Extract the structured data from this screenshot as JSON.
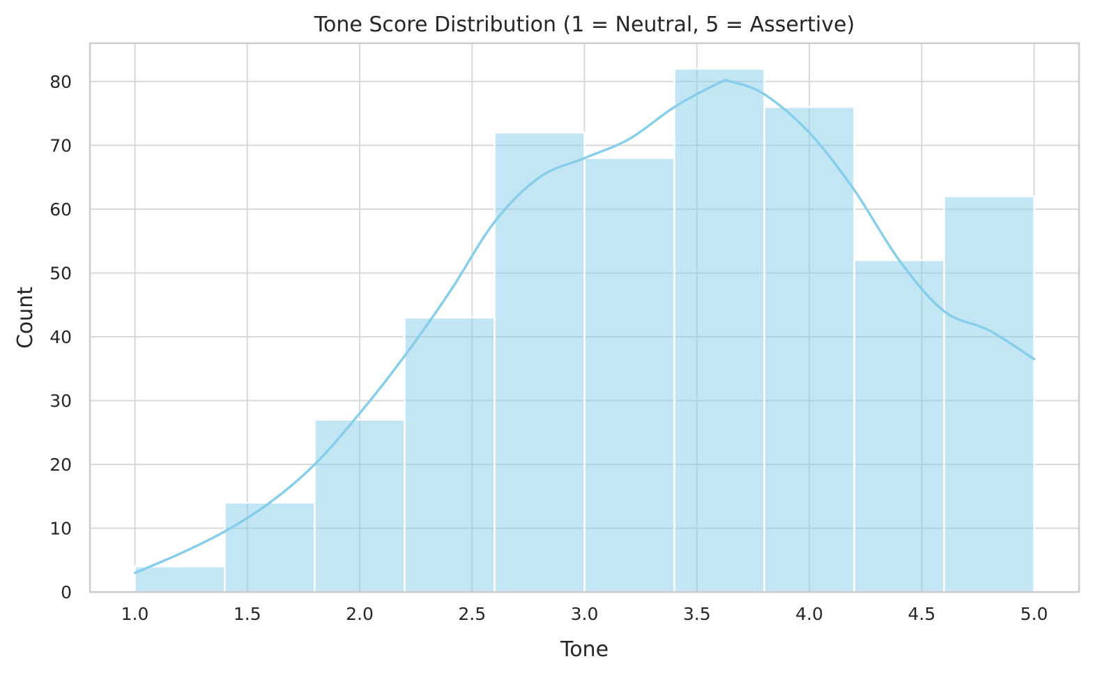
{
  "chart_data": {
    "type": "bar",
    "title": "Tone Score Distribution (1 = Neutral, 5 = Assertive)",
    "xlabel": "Tone",
    "ylabel": "Count",
    "xlim": [
      0.8,
      5.2
    ],
    "ylim": [
      0,
      86
    ],
    "x_ticks": [
      1.0,
      1.5,
      2.0,
      2.5,
      3.0,
      3.5,
      4.0,
      4.5,
      5.0
    ],
    "x_tick_labels": [
      "1.0",
      "1.5",
      "2.0",
      "2.5",
      "3.0",
      "3.5",
      "4.0",
      "4.5",
      "5.0"
    ],
    "y_ticks": [
      0,
      10,
      20,
      30,
      40,
      50,
      60,
      70,
      80
    ],
    "y_tick_labels": [
      "0",
      "10",
      "20",
      "30",
      "40",
      "50",
      "60",
      "70",
      "80"
    ],
    "grid": true,
    "bins": [
      {
        "x0": 1.0,
        "x1": 1.4,
        "count": 4
      },
      {
        "x0": 1.4,
        "x1": 1.8,
        "count": 14
      },
      {
        "x0": 1.8,
        "x1": 2.2,
        "count": 27
      },
      {
        "x0": 2.2,
        "x1": 2.6,
        "count": 43
      },
      {
        "x0": 2.6,
        "x1": 3.0,
        "count": 72
      },
      {
        "x0": 3.0,
        "x1": 3.4,
        "count": 68
      },
      {
        "x0": 3.4,
        "x1": 3.8,
        "count": 82
      },
      {
        "x0": 3.8,
        "x1": 4.2,
        "count": 76
      },
      {
        "x0": 4.2,
        "x1": 4.6,
        "count": 52
      },
      {
        "x0": 4.6,
        "x1": 5.0,
        "count": 62
      }
    ],
    "kde": {
      "x": [
        1.0,
        1.2,
        1.4,
        1.6,
        1.8,
        2.0,
        2.2,
        2.4,
        2.6,
        2.8,
        3.0,
        3.2,
        3.4,
        3.6,
        3.65,
        3.8,
        4.0,
        4.2,
        4.4,
        4.6,
        4.8,
        5.0
      ],
      "y": [
        3,
        6,
        9.5,
        14,
        20,
        28,
        37,
        47,
        58,
        65,
        68,
        71,
        76,
        79.8,
        80,
        78,
        72,
        63,
        52,
        44,
        41,
        36.5
      ]
    },
    "colors": {
      "bar_fill": "#87ceeb",
      "kde_line": "#87ceeb",
      "grid": "#d9d9d9",
      "frame": "#cccccc",
      "text": "#262626"
    }
  }
}
